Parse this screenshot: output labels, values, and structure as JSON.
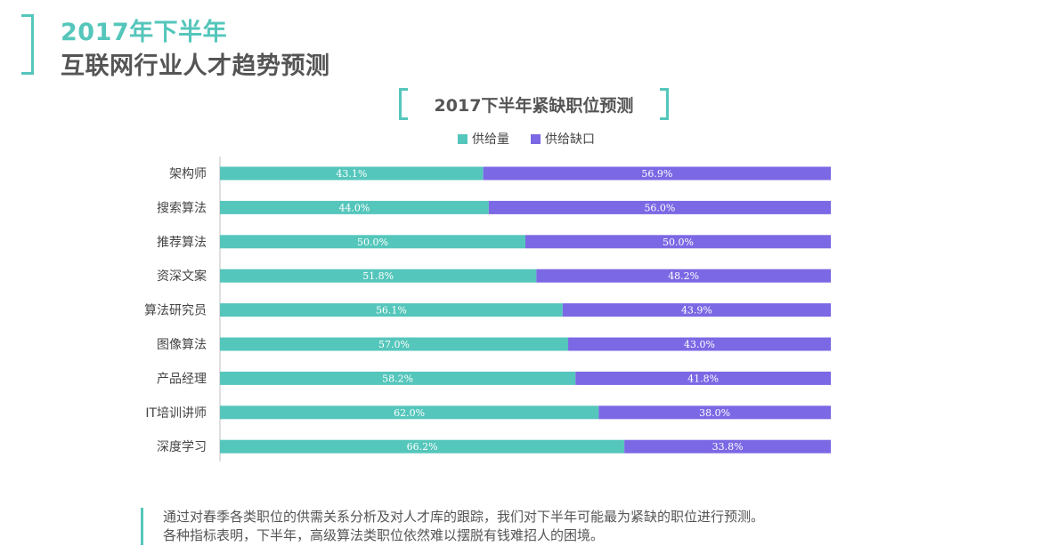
{
  "header": {
    "line1": "2017年下半年",
    "line2": "互联网行业人才趋势预测"
  },
  "chart_data": {
    "type": "bar",
    "orientation": "horizontal",
    "stacked": true,
    "title": "2017下半年紧缺职位预测",
    "xlabel": "",
    "ylabel": "",
    "xlim": [
      0,
      100
    ],
    "categories": [
      "架构师",
      "搜索算法",
      "推荐算法",
      "资深文案",
      "算法研究员",
      "图像算法",
      "产品经理",
      "IT培训讲师",
      "深度学习"
    ],
    "series": [
      {
        "name": "供给量",
        "color": "#55c6bb",
        "values": [
          43.1,
          44.0,
          50.0,
          51.8,
          56.1,
          57.0,
          58.2,
          62.0,
          66.2
        ],
        "labels": [
          "43.1%",
          "44.0%",
          "50.0%",
          "51.8%",
          "56.1%",
          "57.0%",
          "58.2%",
          "62.0%",
          "66.2%"
        ]
      },
      {
        "name": "供给缺口",
        "color": "#7b68e4",
        "values": [
          56.9,
          56.0,
          50.0,
          48.2,
          43.9,
          43.0,
          41.8,
          38.0,
          33.8
        ],
        "labels": [
          "56.9%",
          "56.0%",
          "50.0%",
          "48.2%",
          "43.9%",
          "43.0%",
          "41.8%",
          "38.0%",
          "33.8%"
        ]
      }
    ],
    "legend": {
      "position": "top-center",
      "entries": [
        "供给量",
        "供给缺口"
      ]
    },
    "grid": false
  },
  "footer": {
    "line1": "通过对春季各类职位的供需关系分析及对人才库的跟踪，我们对下半年可能最为紧缺的职位进行预测。",
    "line2": "各种指标表明，下半年，高级算法类职位依然难以摆脱有钱难招人的困境。"
  }
}
